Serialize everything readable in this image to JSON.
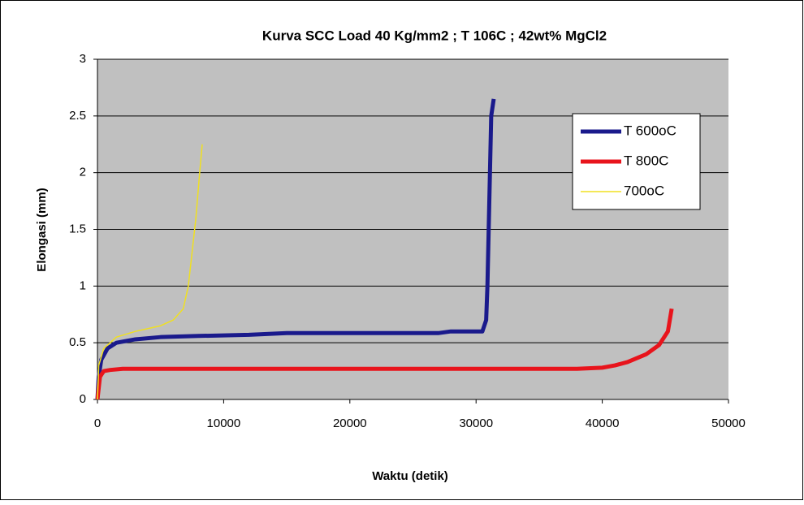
{
  "chart_data": {
    "type": "line",
    "title": "Kurva SCC Load 40 Kg/mm2 ; T 106C ; 42wt% MgCl2",
    "x_label": "Waktu (detik)",
    "y_label": "Elongasi (mm)",
    "xlim": [
      0,
      50000
    ],
    "xticks": [
      0,
      10000,
      20000,
      30000,
      40000,
      50000
    ],
    "ylim": [
      0,
      3
    ],
    "yticks": [
      0,
      0.5,
      1,
      1.5,
      2,
      2.5,
      3
    ],
    "grid": true,
    "legend": "upper right",
    "series": [
      {
        "name": "T 600oC",
        "color": "#1a1a8c",
        "width": 5,
        "x": [
          0,
          100,
          300,
          800,
          1500,
          3000,
          5000,
          8000,
          12000,
          15000,
          20000,
          27000,
          28000,
          30500,
          30800,
          30900,
          31000,
          31100,
          31200,
          31400
        ],
        "values": [
          0,
          0.2,
          0.35,
          0.45,
          0.5,
          0.53,
          0.55,
          0.56,
          0.57,
          0.585,
          0.585,
          0.585,
          0.6,
          0.6,
          0.7,
          1,
          1.5,
          2,
          2.5,
          2.65
        ]
      },
      {
        "name": "T 800C",
        "color": "#e8141c",
        "width": 5,
        "x": [
          0,
          200,
          500,
          1000,
          2000,
          10000,
          20000,
          30000,
          38000,
          40000,
          41000,
          42000,
          43500,
          44500,
          45200,
          45500
        ],
        "values": [
          0,
          0.2,
          0.25,
          0.26,
          0.27,
          0.27,
          0.27,
          0.27,
          0.27,
          0.28,
          0.3,
          0.33,
          0.4,
          0.48,
          0.6,
          0.8
        ]
      },
      {
        "name": "700oC",
        "color": "#f0e020",
        "width": 1.5,
        "x": [
          0,
          100,
          500,
          1500,
          3000,
          5000,
          6000,
          6800,
          7200,
          7500,
          7800,
          8100,
          8300
        ],
        "values": [
          0,
          0.3,
          0.45,
          0.55,
          0.6,
          0.65,
          0.7,
          0.8,
          1,
          1.3,
          1.6,
          2,
          2.25
        ]
      }
    ]
  }
}
